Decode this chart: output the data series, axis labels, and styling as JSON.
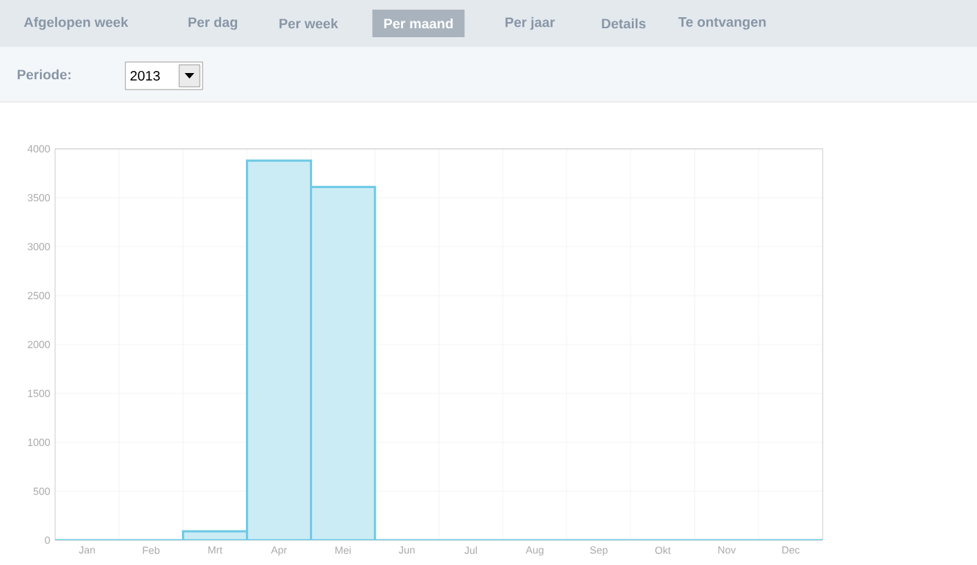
{
  "chart_data": {
    "type": "bar",
    "annotations": [
      "Afgelopen week",
      "Per dag",
      "Per week",
      "Per maand",
      "Per jaar",
      "Details",
      "Te ontvangen",
      "Periode:",
      "2013"
    ],
    "categories": [
      "Jan",
      "Feb",
      "Mrt",
      "Apr",
      "Mei",
      "Jun",
      "Jul",
      "Aug",
      "Sep",
      "Okt",
      "Nov",
      "Dec"
    ],
    "series": [
      {
        "color": "#ccecf5",
        "values": [
          0,
          0,
          90,
          3880,
          3610,
          0,
          0,
          0,
          0,
          0,
          0,
          0
        ]
      }
    ],
    "ylim": [
      0,
      4000
    ],
    "yticks": [
      0,
      500,
      1000,
      1500,
      2000,
      2500,
      3000,
      3500,
      4000
    ],
    "grid": true
  }
}
